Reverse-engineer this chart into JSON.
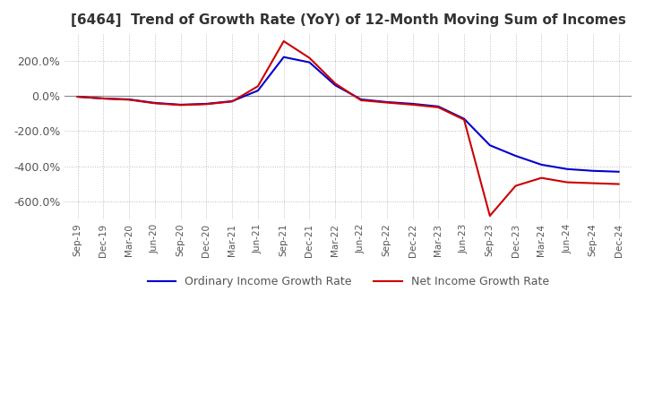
{
  "title": "[6464]  Trend of Growth Rate (YoY) of 12-Month Moving Sum of Incomes",
  "ylim": [
    -700,
    350
  ],
  "yticks": [
    200,
    0,
    -200,
    -400,
    -600
  ],
  "ytick_labels": [
    "200.0%",
    "0.0%",
    "-200.0%",
    "-400.0%",
    "-600.0%"
  ],
  "background_color": "#ffffff",
  "grid_color": "#aaaaaa",
  "ordinary_color": "#0000cc",
  "net_color": "#cc0000",
  "legend_labels": [
    "Ordinary Income Growth Rate",
    "Net Income Growth Rate"
  ],
  "x_labels": [
    "Sep-19",
    "Dec-19",
    "Mar-20",
    "Jun-20",
    "Sep-20",
    "Dec-20",
    "Mar-21",
    "Jun-21",
    "Sep-21",
    "Dec-21",
    "Mar-22",
    "Jun-22",
    "Sep-22",
    "Dec-22",
    "Mar-23",
    "Jun-23",
    "Sep-23",
    "Dec-23",
    "Mar-24",
    "Jun-24",
    "Sep-24",
    "Dec-24"
  ],
  "ordinary_income": [
    -5,
    -15,
    -20,
    -40,
    -50,
    -45,
    -30,
    30,
    220,
    190,
    60,
    -20,
    -35,
    -45,
    -60,
    -130,
    -280,
    -340,
    -390,
    -415,
    -425,
    -430
  ],
  "net_income": [
    -5,
    -15,
    -22,
    -42,
    -52,
    -47,
    -32,
    55,
    310,
    215,
    70,
    -25,
    -38,
    -50,
    -65,
    -135,
    -680,
    -510,
    -465,
    -490,
    -495,
    -500
  ]
}
